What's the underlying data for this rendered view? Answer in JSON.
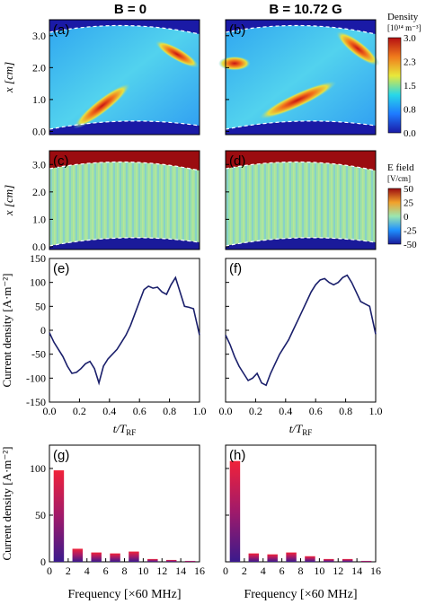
{
  "columns": [
    {
      "title": "B = 0"
    },
    {
      "title": "B = 10.72 G"
    }
  ],
  "colorbars": {
    "density": {
      "title": "Density",
      "unit": "[10¹⁴ m⁻³]",
      "ticks": [
        "3.0",
        "2.3",
        "1.5",
        "0.8",
        "0.0"
      ],
      "range": [
        0,
        3.0
      ]
    },
    "efield": {
      "title": "E field",
      "unit": "[V/cm]",
      "ticks": [
        "50",
        "25",
        "0",
        "-25",
        "-50"
      ],
      "range": [
        -50,
        50
      ]
    }
  },
  "axes": {
    "x_label": "x [cm]",
    "x_ticks": [
      "0.0",
      "1.0",
      "2.0",
      "3.0"
    ],
    "time_label": "t/T",
    "time_label_sub": "RF",
    "time_ticks": [
      "0.0",
      "0.2",
      "0.4",
      "0.6",
      "0.8",
      "1.0"
    ],
    "current_label": "Current density [A·m⁻²]",
    "current_ticks": [
      "-150",
      "-100",
      "-50",
      "0",
      "50",
      "100",
      "150"
    ],
    "spectrum_ticks_y": [
      "0",
      "50",
      "100"
    ],
    "freq_label": "Frequency [×60 MHz]",
    "freq_ticks": [
      "0",
      "2",
      "4",
      "6",
      "8",
      "10",
      "12",
      "14",
      "16"
    ]
  },
  "panels": {
    "a": "(a)",
    "b": "(b)",
    "c": "(c)",
    "d": "(d)",
    "e": "(e)",
    "f": "(f)",
    "g": "(g)",
    "h": "(h)"
  },
  "chart_data": [
    {
      "type": "line",
      "panel": "(e)",
      "title": "",
      "xlabel": "t/T_RF",
      "ylabel": "Current density [A·m⁻²]",
      "xlim": [
        0,
        1
      ],
      "ylim": [
        -150,
        150
      ],
      "x": [
        0.0,
        0.03,
        0.06,
        0.09,
        0.12,
        0.15,
        0.18,
        0.21,
        0.24,
        0.27,
        0.3,
        0.33,
        0.36,
        0.39,
        0.42,
        0.45,
        0.48,
        0.51,
        0.54,
        0.57,
        0.6,
        0.63,
        0.66,
        0.69,
        0.72,
        0.75,
        0.78,
        0.81,
        0.84,
        0.87,
        0.9,
        0.93,
        0.96,
        1.0
      ],
      "y": [
        -5,
        -25,
        -40,
        -55,
        -75,
        -90,
        -88,
        -80,
        -70,
        -65,
        -80,
        -110,
        -75,
        -60,
        -50,
        -40,
        -25,
        -10,
        10,
        35,
        60,
        85,
        92,
        88,
        90,
        80,
        75,
        95,
        110,
        80,
        50,
        48,
        45,
        -10
      ]
    },
    {
      "type": "line",
      "panel": "(f)",
      "title": "",
      "xlabel": "t/T_RF",
      "ylabel": "Current density [A·m⁻²]",
      "xlim": [
        0,
        1
      ],
      "ylim": [
        -150,
        150
      ],
      "x": [
        0.0,
        0.03,
        0.06,
        0.09,
        0.12,
        0.15,
        0.18,
        0.21,
        0.24,
        0.27,
        0.3,
        0.33,
        0.36,
        0.39,
        0.42,
        0.45,
        0.48,
        0.51,
        0.54,
        0.57,
        0.6,
        0.63,
        0.66,
        0.69,
        0.72,
        0.75,
        0.78,
        0.81,
        0.84,
        0.87,
        0.9,
        0.93,
        0.96,
        1.0
      ],
      "y": [
        -10,
        -30,
        -55,
        -75,
        -90,
        -105,
        -100,
        -90,
        -110,
        -115,
        -90,
        -70,
        -50,
        -35,
        -20,
        0,
        20,
        40,
        60,
        80,
        95,
        105,
        108,
        100,
        95,
        100,
        110,
        115,
        100,
        80,
        60,
        55,
        50,
        -8
      ]
    },
    {
      "type": "bar",
      "panel": "(g)",
      "title": "",
      "xlabel": "Frequency [×60 MHz]",
      "ylabel": "Current density [A·m⁻²]",
      "xlim": [
        0,
        16
      ],
      "ylim": [
        0,
        125
      ],
      "x": [
        1,
        3,
        5,
        7,
        9,
        11,
        13,
        15
      ],
      "values": [
        98,
        14,
        10,
        9,
        11,
        3,
        2,
        1
      ]
    },
    {
      "type": "bar",
      "panel": "(h)",
      "title": "",
      "xlabel": "Frequency [×60 MHz]",
      "ylabel": "Current density [A·m⁻²]",
      "xlim": [
        0,
        16
      ],
      "ylim": [
        0,
        125
      ],
      "x": [
        1,
        3,
        5,
        7,
        9,
        11,
        13,
        15
      ],
      "values": [
        108,
        9,
        8,
        10,
        6,
        3,
        3,
        1
      ]
    }
  ]
}
